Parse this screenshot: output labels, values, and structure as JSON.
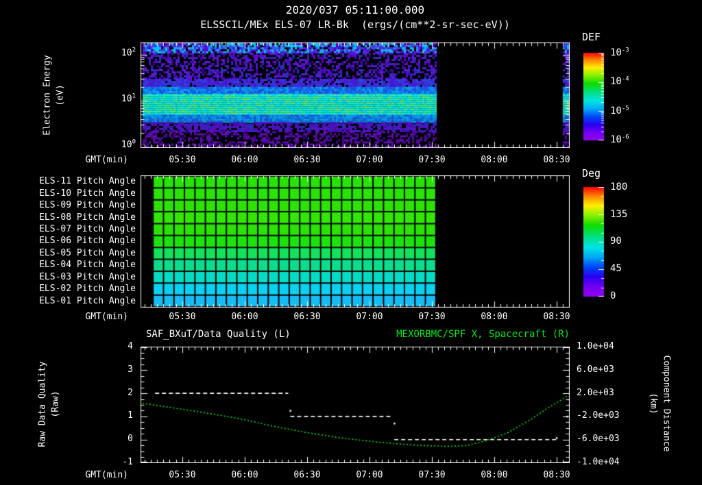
{
  "colors": {
    "background": "#000000",
    "axis": "#ffffff",
    "text": "#ffffff",
    "green": "#00e818",
    "grid_line": "#000000",
    "rainbow_stops": [
      [
        0,
        "#ff0000"
      ],
      [
        0.09,
        "#ff9000"
      ],
      [
        0.17,
        "#fff000"
      ],
      [
        0.26,
        "#86f000"
      ],
      [
        0.35,
        "#10dc00"
      ],
      [
        0.46,
        "#00e08c"
      ],
      [
        0.55,
        "#00e4e4"
      ],
      [
        0.64,
        "#00aaf4"
      ],
      [
        0.73,
        "#0048f8"
      ],
      [
        0.82,
        "#2a00f0"
      ],
      [
        0.92,
        "#7a00f2"
      ],
      [
        1,
        "#9000f0"
      ]
    ]
  },
  "header": {
    "title": "2020/037 05:11:00.000",
    "subtitle": "ELSSCIL/MEx ELS-07 LR-Bk  (ergs/(cm**2-sr-sec-eV))"
  },
  "time_axis": {
    "label": "GMT(min)",
    "axis_start": "05:10",
    "axis_end": "08:36",
    "ticks": [
      "05:30",
      "06:00",
      "06:30",
      "07:00",
      "07:30",
      "08:00",
      "08:30"
    ]
  },
  "chart_data": [
    {
      "id": "electron-energy-spectrogram",
      "type": "heatmap",
      "instrument": "ELSSCIL/MEx ELS-07 LR-Bk",
      "units": "ergs/(cm**2-sr-sec-eV)",
      "y_axis": {
        "label_line1": "Electron Energy",
        "label_line2": "(eV)",
        "scale": "log",
        "min_eV": 1,
        "max_eV": 180,
        "tick_parts": [
          {
            "base": "10",
            "exp": "2"
          },
          {
            "base": "10",
            "exp": "1"
          },
          {
            "base": "10",
            "exp": "0"
          }
        ]
      },
      "colorbar": {
        "label": "DEF",
        "scale": "log",
        "min": "1e-6",
        "max": "1e-3",
        "tick_parts": [
          {
            "base": "10",
            "exp": "-3"
          },
          {
            "base": "10",
            "exp": "-4"
          },
          {
            "base": "10",
            "exp": "-5"
          },
          {
            "base": "10",
            "exp": "-6"
          }
        ]
      },
      "coverage": [
        {
          "from": "05:11",
          "to": "07:32"
        },
        {
          "from": "08:33",
          "to": "08:35"
        }
      ],
      "features": [
        {
          "band_eV": [
            5,
            14
          ],
          "description": "bright cyan-green band, flux ~3e-5 to 1e-4, brightest near 06:25 and 07:25"
        },
        {
          "band_eV": [
            30,
            180
          ],
          "description": "sparse purple-blue noise, flux ~1e-6 to 1e-5"
        },
        {
          "band_eV": [
            1,
            2.5
          ],
          "description": "sparse purple noise, flux ~1e-6"
        }
      ],
      "render_bands": [
        {
          "eV_min": 110,
          "eV_max": 180,
          "density": 0.85,
          "colors": [
            "#6a14e6",
            "#4436ea",
            "#2a5cee",
            "#18a8f0",
            "#00ccf0",
            "#5000c8"
          ]
        },
        {
          "eV_min": 30,
          "eV_max": 110,
          "density": 0.5,
          "colors": [
            "#5c08d4",
            "#6a16e0",
            "#4420c4",
            "#3a0a9a",
            "#2a38cc"
          ]
        },
        {
          "eV_min": 20,
          "eV_max": 30,
          "density": 0.85,
          "colors": [
            "#3c28da",
            "#2c46e6",
            "#5014d6",
            "#4030e0"
          ]
        },
        {
          "eV_min": 14,
          "eV_max": 20,
          "density": 1,
          "colors": [
            "#1468ee",
            "#0a8cf2",
            "#2052e8",
            "#00aaf0"
          ]
        },
        {
          "eV_min": 5,
          "eV_max": 14,
          "density": 1,
          "colors": [
            "#00e6cc",
            "#26f0c4",
            "#00d6ea",
            "#3cecb2",
            "#16eadc",
            "#62e87a",
            "#30ee9a",
            "#00e0f0"
          ]
        },
        {
          "eV_min": 3.5,
          "eV_max": 5,
          "density": 1,
          "colors": [
            "#00aaf0",
            "#0c7cea",
            "#1858e0",
            "#0a96ee"
          ]
        },
        {
          "eV_min": 2.2,
          "eV_max": 3.5,
          "density": 0.7,
          "colors": [
            "#4a1cc8",
            "#5a10ce",
            "#3228bc",
            "#4c0cb4"
          ]
        },
        {
          "eV_min": 1,
          "eV_max": 2.2,
          "density": 0.45,
          "colors": [
            "#56069e",
            "#6a10b8",
            "#4a08a0",
            "#5c14c6"
          ]
        }
      ]
    },
    {
      "id": "pitch-angle-grid",
      "type": "heatmap",
      "colorbar": {
        "label": "Deg",
        "min": 0,
        "max": 180,
        "ticks": [
          "180",
          "135",
          "90",
          "45",
          "0"
        ]
      },
      "coverage": [
        {
          "from": "05:16",
          "to": "07:32"
        }
      ],
      "columns": 27,
      "rows": [
        {
          "label": "ELS-11 Pitch Angle",
          "deg": 118,
          "color": "#26e400"
        },
        {
          "label": "ELS-10 Pitch Angle",
          "deg": 116,
          "color": "#28e400"
        },
        {
          "label": "ELS-09 Pitch Angle",
          "deg": 114,
          "color": "#2ee200"
        },
        {
          "label": "ELS-08 Pitch Angle",
          "deg": 112,
          "color": "#32e600"
        },
        {
          "label": "ELS-07 Pitch Angle",
          "deg": 110,
          "color": "#2ce200"
        },
        {
          "label": "ELS-06 Pitch Angle",
          "deg": 106,
          "color": "#1ce30e"
        },
        {
          "label": "ELS-05 Pitch Angle",
          "deg": 101,
          "color": "#12e25c"
        },
        {
          "label": "ELS-04 Pitch Angle",
          "deg": 95,
          "color": "#0ade8e"
        },
        {
          "label": "ELS-03 Pitch Angle",
          "deg": 88,
          "color": "#06dcc4"
        },
        {
          "label": "ELS-02 Pitch Angle",
          "deg": 80,
          "color": "#08d2f2"
        },
        {
          "label": "ELS-01 Pitch Angle",
          "deg": 72,
          "color": "#16bcf4"
        }
      ]
    },
    {
      "id": "quality-and-spacecraft-x",
      "type": "line",
      "left_axis": {
        "label_line1": "Raw Data Quality",
        "label_line2": "(Raw)",
        "min": -1,
        "max": 4,
        "ticks": [
          "4",
          "3",
          "2",
          "1",
          "0",
          "-1"
        ]
      },
      "right_axis": {
        "label_line1": "Component Distance",
        "label_line2": "(km)",
        "min": -10000,
        "max": 10000,
        "ticks": [
          "1.0e+04",
          "6.0e+03",
          "2.0e+03",
          "-2.0e+03",
          "-6.0e+03",
          "-1.0e+04"
        ]
      },
      "series": [
        {
          "name": "SAF_BXuT/Data Quality (L)",
          "axis": "left",
          "color": "#ffffff",
          "style": "dashed",
          "segments": [
            {
              "from": "05:17",
              "to": "06:21",
              "value": 2
            },
            {
              "from": "06:22",
              "to": "07:11",
              "value": 1
            },
            {
              "from": "07:12",
              "to": "08:30",
              "value": 0
            }
          ],
          "points": [
            {
              "t": "06:22",
              "value": 1.25
            },
            {
              "t": "07:12",
              "value": 0.7
            },
            {
              "t": "08:30",
              "value": 0.07
            },
            {
              "t": "08:35",
              "value": 1.0
            }
          ]
        },
        {
          "name": "MEXORBMC/SPF X, Spacecraft (R)",
          "axis": "right",
          "color": "#00e818",
          "style": "dotted",
          "x": [
            "05:11",
            "05:30",
            "05:45",
            "06:00",
            "06:14",
            "06:30",
            "06:47",
            "07:04",
            "07:20",
            "07:37",
            "07:47",
            "07:56",
            "08:06",
            "08:16",
            "08:26",
            "08:35"
          ],
          "km": [
            280,
            -760,
            -1600,
            -2560,
            -3720,
            -4800,
            -5740,
            -6440,
            -6920,
            -7160,
            -7040,
            -6200,
            -4920,
            -2880,
            -520,
            1440
          ]
        }
      ]
    }
  ]
}
